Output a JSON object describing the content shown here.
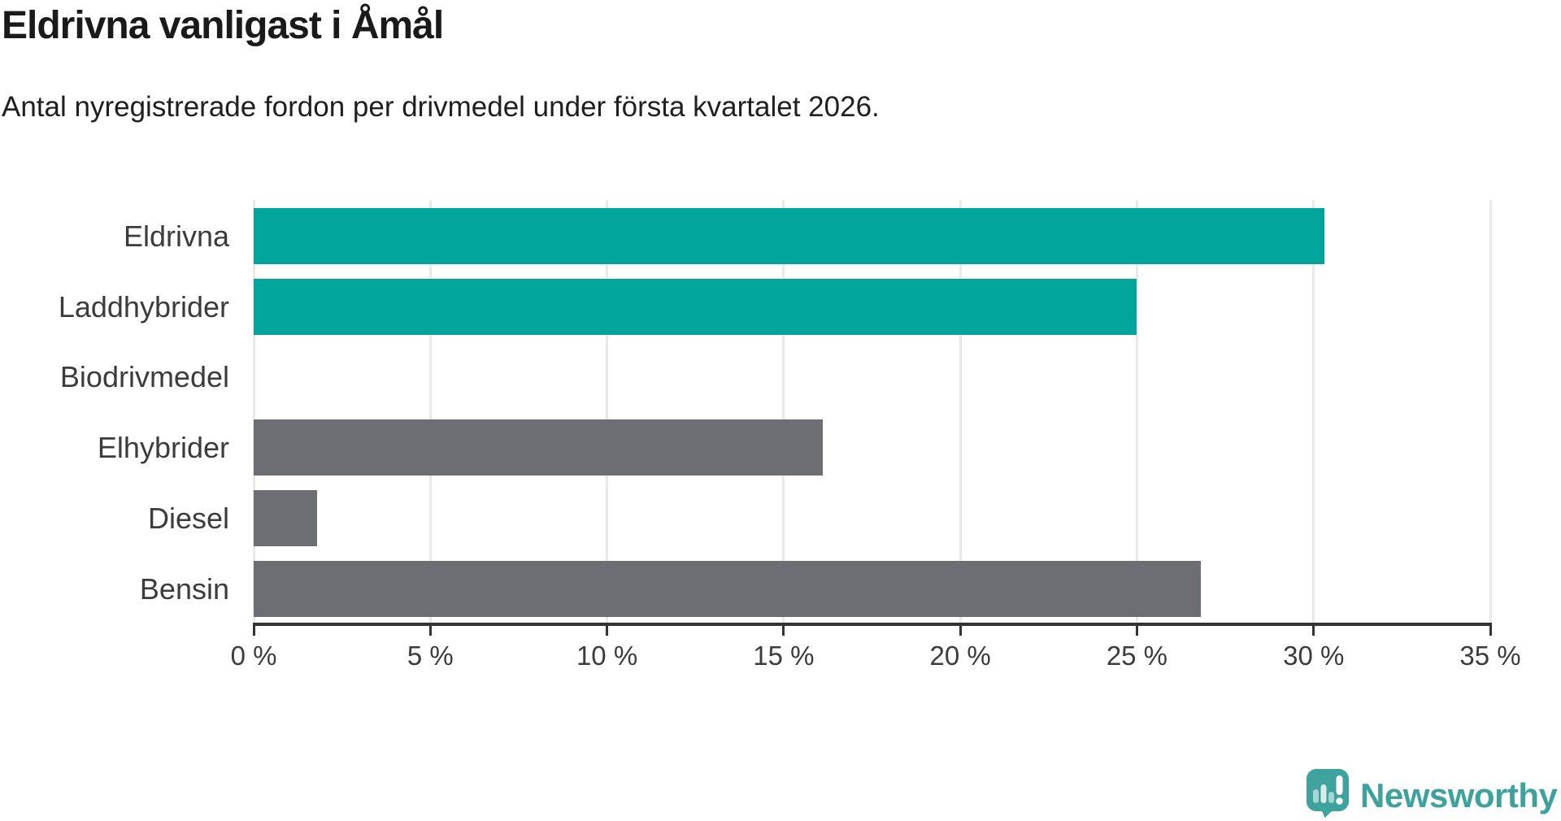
{
  "header": {
    "title": "Eldrivna vanligast i Åmål",
    "subtitle": "Antal nyregistrerade fordon per drivmedel under första kvartalet 2026."
  },
  "chart_data": {
    "type": "bar",
    "orientation": "horizontal",
    "title": "Eldrivna vanligast i Åmål",
    "subtitle": "Antal nyregistrerade fordon per drivmedel under första kvartalet 2026.",
    "categories": [
      "Eldrivna",
      "Laddhybrider",
      "Biodrivmedel",
      "Elhybrider",
      "Diesel",
      "Bensin"
    ],
    "values": [
      30.3,
      25.0,
      0,
      16.1,
      1.8,
      26.8
    ],
    "unit": "%",
    "xlabel": "",
    "ylabel": "",
    "xlim": [
      0,
      35
    ],
    "x_ticks": [
      0,
      5,
      10,
      15,
      20,
      25,
      30,
      35
    ],
    "x_tick_labels": [
      "0 %",
      "5 %",
      "10 %",
      "15 %",
      "20 %",
      "25 %",
      "30 %",
      "35 %"
    ],
    "bar_colors": [
      "#00A49A",
      "#00A49A",
      "#6D6E73",
      "#6D6E73",
      "#6D6E73",
      "#6D6E73"
    ],
    "grid": true,
    "legend": "none"
  },
  "colors": {
    "highlight": "#00A49A",
    "default_bar": "#6D6E73",
    "gridline": "#e9e9e9",
    "axis": "#333333",
    "label_text": "#3c3c3c",
    "logo_teal": "#3ea29c"
  },
  "branding": {
    "logo_text": "Newsworthy",
    "logo_icon": "newsworthy-speech-bubble-bar-chart-icon"
  }
}
